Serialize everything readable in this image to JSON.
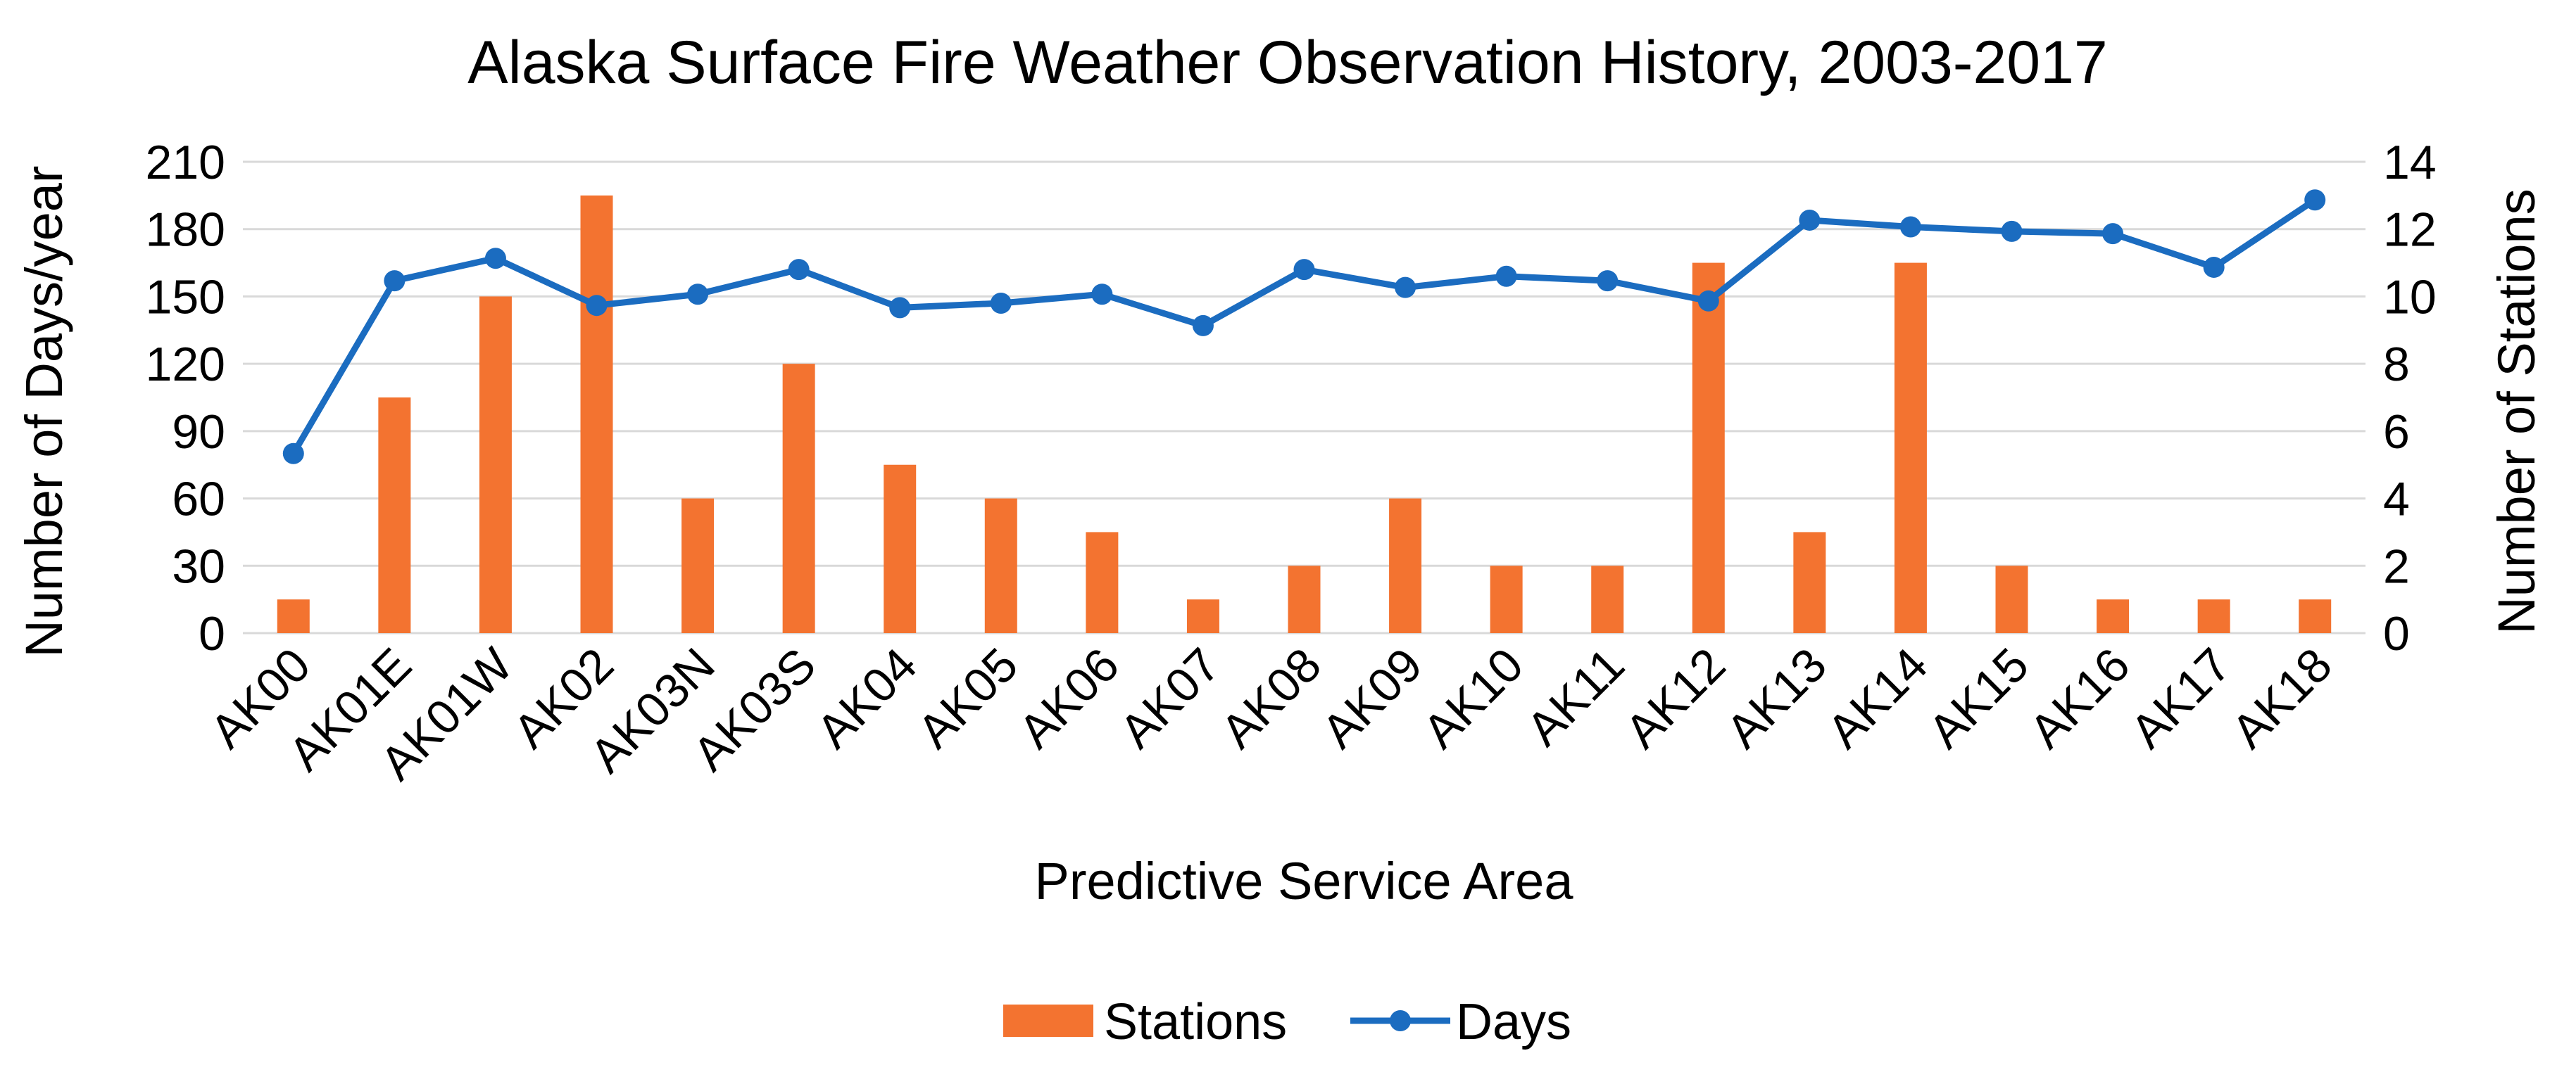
{
  "chart_data": {
    "type": "bar+line",
    "title": "Alaska Surface Fire Weather Observation History, 2003-2017",
    "xlabel": "Predictive Service Area",
    "ylabel_left": "Number of Days/year",
    "ylabel_right": "Number of Stations",
    "ylim_left": [
      0,
      210
    ],
    "ylim_right": [
      0,
      14
    ],
    "yticks_left": [
      "0",
      "30",
      "60",
      "90",
      "120",
      "150",
      "180",
      "210"
    ],
    "yticks_right": [
      "0",
      "2",
      "4",
      "6",
      "8",
      "10",
      "12",
      "14"
    ],
    "grid": true,
    "legend_position": "bottom",
    "categories": [
      "AK00",
      "AK01E",
      "AK01W",
      "AK02",
      "AK03N",
      "AK03S",
      "AK04",
      "AK05",
      "AK06",
      "AK07",
      "AK08",
      "AK09",
      "AK10",
      "AK11",
      "AK12",
      "AK13",
      "AK14",
      "AK15",
      "AK16",
      "AK17",
      "AK18"
    ],
    "series": [
      {
        "name": "Stations",
        "type": "bar",
        "axis": "right",
        "color": "#F37330",
        "values": [
          1,
          7,
          10,
          13,
          4,
          8,
          5,
          4,
          3,
          1,
          2,
          4,
          2,
          2,
          11,
          3,
          11,
          2,
          1,
          1,
          1
        ]
      },
      {
        "name": "Days",
        "type": "line",
        "axis": "left",
        "color": "#1B6CC0",
        "values": [
          80,
          157,
          167,
          146,
          151,
          162,
          145,
          147,
          151,
          137,
          162,
          154,
          159,
          157,
          148,
          184,
          181,
          179,
          178,
          163,
          193
        ]
      }
    ]
  }
}
